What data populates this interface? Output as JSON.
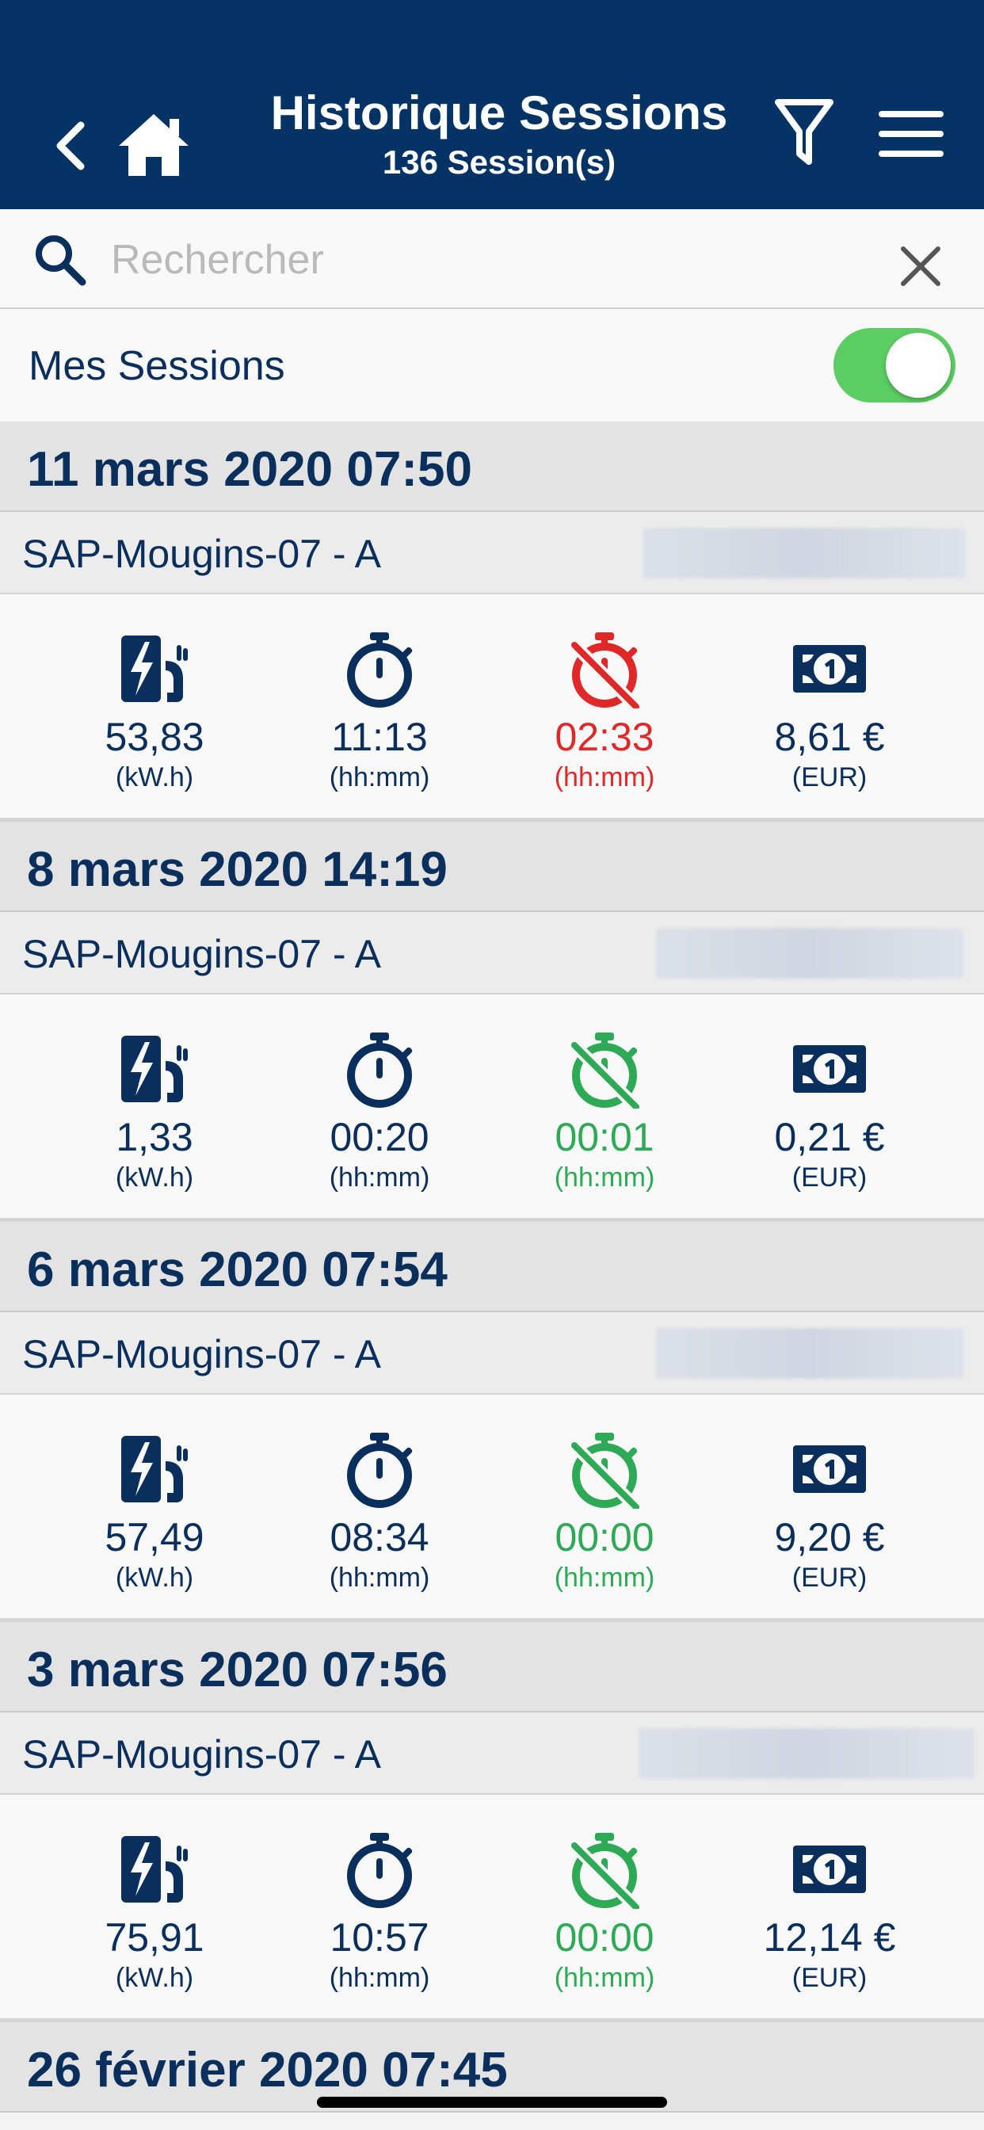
{
  "header": {
    "title": "Historique Sessions",
    "subtitle": "136 Session(s)",
    "back_icon": "chevron-left-icon",
    "home_icon": "home-icon",
    "filter_icon": "filter-icon",
    "menu_icon": "hamburger-menu-icon",
    "background_color": "#053366"
  },
  "search": {
    "placeholder": "Rechercher",
    "value": "",
    "icon": "search-icon",
    "clear_icon": "close-icon"
  },
  "filter_row": {
    "label": "Mes Sessions",
    "toggle_on": true,
    "toggle_color": "#5ccd62"
  },
  "sessions": [
    {
      "date": "11 mars 2020 07:50",
      "station": "SAP-Mougins-07 - A",
      "energy": {
        "value": "53,83",
        "unit": "(kW.h)"
      },
      "duration": {
        "value": "11:13",
        "unit": "(hh:mm)"
      },
      "idle": {
        "value": "02:33",
        "unit": "(hh:mm)",
        "status": "over"
      },
      "cost": {
        "value": "8,61 €",
        "unit": "(EUR)"
      }
    },
    {
      "date": "8 mars 2020 14:19",
      "station": "SAP-Mougins-07 - A",
      "energy": {
        "value": "1,33",
        "unit": "(kW.h)"
      },
      "duration": {
        "value": "00:20",
        "unit": "(hh:mm)"
      },
      "idle": {
        "value": "00:01",
        "unit": "(hh:mm)",
        "status": "ok"
      },
      "cost": {
        "value": "0,21 €",
        "unit": "(EUR)"
      }
    },
    {
      "date": "6 mars 2020 07:54",
      "station": "SAP-Mougins-07 - A",
      "energy": {
        "value": "57,49",
        "unit": "(kW.h)"
      },
      "duration": {
        "value": "08:34",
        "unit": "(hh:mm)"
      },
      "idle": {
        "value": "00:00",
        "unit": "(hh:mm)",
        "status": "ok"
      },
      "cost": {
        "value": "9,20 €",
        "unit": "(EUR)"
      }
    },
    {
      "date": "3 mars 2020 07:56",
      "station": "SAP-Mougins-07 - A",
      "energy": {
        "value": "75,91",
        "unit": "(kW.h)"
      },
      "duration": {
        "value": "10:57",
        "unit": "(hh:mm)"
      },
      "idle": {
        "value": "00:00",
        "unit": "(hh:mm)",
        "status": "ok"
      },
      "cost": {
        "value": "12,14 €",
        "unit": "(EUR)"
      }
    }
  ],
  "next_session": {
    "date": "26 février 2020 07:45"
  },
  "colors": {
    "primary": "#0a2f5c",
    "alert": "#e02828",
    "ok": "#2eaa56"
  }
}
